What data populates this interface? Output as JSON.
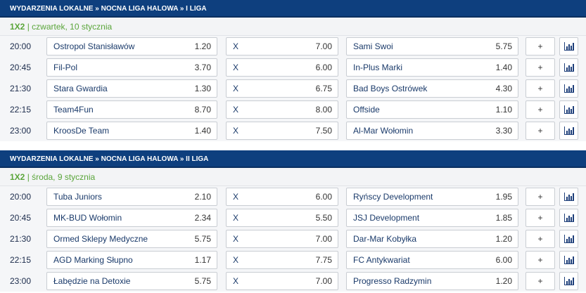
{
  "sections": [
    {
      "header": "WYDARZENIA LOKALNE » NOCNA LIGA HALOWA » I LIGA",
      "market": "1X2",
      "date": "| czwartek, 10 stycznia",
      "matches": [
        {
          "time": "20:00",
          "home": "Ostropol Stanisławów",
          "home_odd": "1.20",
          "draw": "X",
          "draw_odd": "7.00",
          "away": "Sami Swoi",
          "away_odd": "5.75"
        },
        {
          "time": "20:45",
          "home": "Fil-Pol",
          "home_odd": "3.70",
          "draw": "X",
          "draw_odd": "6.00",
          "away": "In-Plus Marki",
          "away_odd": "1.40"
        },
        {
          "time": "21:30",
          "home": "Stara Gwardia",
          "home_odd": "1.30",
          "draw": "X",
          "draw_odd": "6.75",
          "away": "Bad Boys Ostrówek",
          "away_odd": "4.30"
        },
        {
          "time": "22:15",
          "home": "Team4Fun",
          "home_odd": "8.70",
          "draw": "X",
          "draw_odd": "8.00",
          "away": "Offside",
          "away_odd": "1.10"
        },
        {
          "time": "23:00",
          "home": "KroosDe Team",
          "home_odd": "1.40",
          "draw": "X",
          "draw_odd": "7.50",
          "away": "Al-Mar Wołomin",
          "away_odd": "3.30"
        }
      ]
    },
    {
      "header": "WYDARZENIA LOKALNE » NOCNA LIGA HALOWA » II LIGA",
      "market": "1X2",
      "date": "| środa, 9 stycznia",
      "matches": [
        {
          "time": "20:00",
          "home": "Tuba Juniors",
          "home_odd": "2.10",
          "draw": "X",
          "draw_odd": "6.00",
          "away": "Ryńscy Development",
          "away_odd": "1.95"
        },
        {
          "time": "20:45",
          "home": "MK-BUD Wołomin",
          "home_odd": "2.34",
          "draw": "X",
          "draw_odd": "5.50",
          "away": "JSJ Development",
          "away_odd": "1.85"
        },
        {
          "time": "21:30",
          "home": "Ormed Sklepy Medyczne",
          "home_odd": "5.75",
          "draw": "X",
          "draw_odd": "7.00",
          "away": "Dar-Mar Kobyłka",
          "away_odd": "1.20"
        },
        {
          "time": "22:15",
          "home": "AGD Marking Słupno",
          "home_odd": "1.17",
          "draw": "X",
          "draw_odd": "7.75",
          "away": "FC Antykwariat",
          "away_odd": "6.00"
        },
        {
          "time": "23:00",
          "home": "Łabędzie na Detoxie",
          "home_odd": "5.75",
          "draw": "X",
          "draw_odd": "7.00",
          "away": "Progresso Radzymin",
          "away_odd": "1.20"
        }
      ]
    }
  ],
  "more_label": "+",
  "stats_icon": "bar-chart-icon",
  "colors": {
    "header_bg": "#0e3f7e",
    "market_green": "#5aa53a"
  }
}
